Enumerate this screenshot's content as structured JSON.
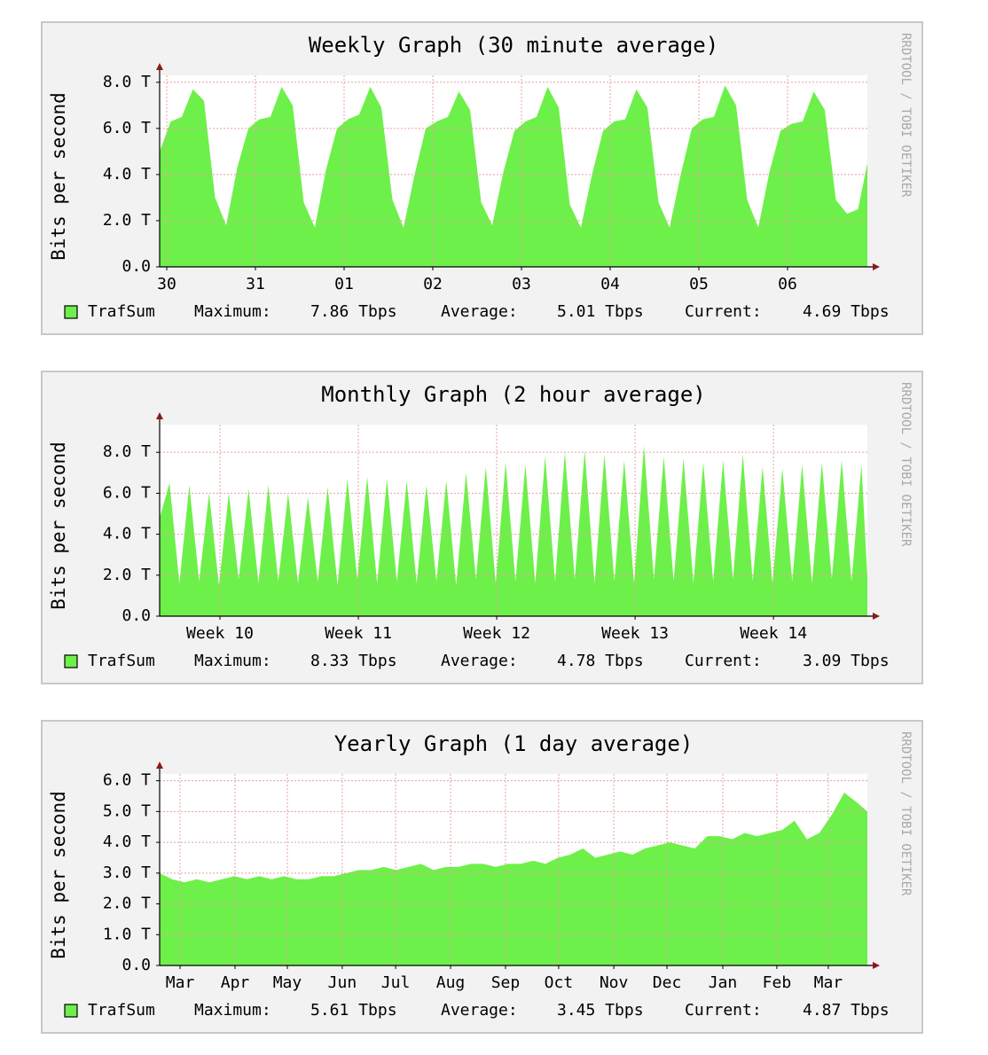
{
  "chart_data": [
    {
      "type": "area",
      "title": "Weekly Graph (30 minute average)",
      "ylabel": "Bits per second",
      "watermark": "RRDTOOL / TOBI OETIKER",
      "x": [
        0,
        0.125,
        0.25,
        0.375,
        0.5,
        0.625,
        0.75,
        0.875,
        1,
        1.125,
        1.25,
        1.375,
        1.5,
        1.625,
        1.75,
        1.875,
        2,
        2.125,
        2.25,
        2.375,
        2.5,
        2.625,
        2.75,
        2.875,
        3,
        3.125,
        3.25,
        3.375,
        3.5,
        3.625,
        3.75,
        3.875,
        4,
        4.125,
        4.25,
        4.375,
        4.5,
        4.625,
        4.75,
        4.875,
        5,
        5.125,
        5.25,
        5.375,
        5.5,
        5.625,
        5.75,
        5.875,
        6,
        6.125,
        6.25,
        6.375,
        6.5,
        6.625,
        6.75,
        6.875,
        7,
        7.125,
        7.25,
        7.375,
        7.5,
        7.625,
        7.75,
        7.875,
        7.98
      ],
      "series": [
        {
          "name": "TrafSum",
          "color": "#6ef04a",
          "values": [
            5.0,
            6.3,
            6.5,
            7.7,
            7.2,
            3.0,
            1.8,
            4.3,
            6.0,
            6.4,
            6.5,
            7.8,
            7.0,
            2.8,
            1.7,
            4.2,
            6.0,
            6.4,
            6.6,
            7.8,
            6.9,
            2.9,
            1.7,
            4.0,
            6.0,
            6.3,
            6.5,
            7.6,
            6.8,
            2.8,
            1.8,
            4.1,
            5.9,
            6.3,
            6.5,
            7.8,
            6.9,
            2.7,
            1.7,
            4.0,
            5.9,
            6.3,
            6.4,
            7.7,
            6.9,
            2.8,
            1.7,
            4.0,
            6.0,
            6.4,
            6.5,
            7.86,
            7.0,
            2.9,
            1.7,
            4.1,
            5.9,
            6.2,
            6.3,
            7.6,
            6.8,
            2.9,
            2.3,
            2.5,
            4.5
          ]
        }
      ],
      "xlim": [
        0,
        7.98
      ],
      "ylim": [
        0,
        8.3
      ],
      "xticks": [
        {
          "value": 0.08,
          "label": "30"
        },
        {
          "value": 1.08,
          "label": "31"
        },
        {
          "value": 2.08,
          "label": "01"
        },
        {
          "value": 3.08,
          "label": "02"
        },
        {
          "value": 4.08,
          "label": "03"
        },
        {
          "value": 5.08,
          "label": "04"
        },
        {
          "value": 6.08,
          "label": "05"
        },
        {
          "value": 7.08,
          "label": "06"
        }
      ],
      "yticks": [
        {
          "value": 0,
          "label": "0.0"
        },
        {
          "value": 2,
          "label": "2.0 T"
        },
        {
          "value": 4,
          "label": "4.0 T"
        },
        {
          "value": 6,
          "label": "6.0 T"
        },
        {
          "value": 8,
          "label": "8.0 T"
        }
      ],
      "grid": true,
      "legend_stats": [
        {
          "label": "Maximum:",
          "text": "7.86 Tbps"
        },
        {
          "label": "Average:",
          "text": "5.01 Tbps"
        },
        {
          "label": "Current:",
          "text": "4.69 Tbps"
        }
      ]
    },
    {
      "type": "area",
      "title": "Monthly Graph (2 hour average)",
      "ylabel": "Bits per second",
      "watermark": "RRDTOOL / TOBI OETIKER",
      "x": [
        0,
        0.5,
        1,
        1.5,
        2,
        2.5,
        3,
        3.5,
        4,
        4.5,
        5,
        5.5,
        6,
        6.5,
        7,
        7.5,
        8,
        8.5,
        9,
        9.5,
        10,
        10.5,
        11,
        11.5,
        12,
        12.5,
        13,
        13.5,
        14,
        14.5,
        15,
        15.5,
        16,
        16.5,
        17,
        17.5,
        18,
        18.5,
        19,
        19.5,
        20,
        20.5,
        21,
        21.5,
        22,
        22.5,
        23,
        23.5,
        24,
        24.5,
        25,
        25.5,
        26,
        26.5,
        27,
        27.5,
        28,
        28.5,
        29,
        29.5,
        30,
        30.5,
        31,
        31.5,
        32,
        32.5,
        33,
        33.5,
        34,
        34.5,
        35,
        35.5,
        35.8
      ],
      "series": [
        {
          "name": "TrafSum",
          "color": "#6ef04a",
          "values": [
            4.8,
            6.5,
            1.6,
            6.4,
            1.7,
            6.0,
            1.5,
            6.0,
            1.8,
            6.2,
            1.6,
            6.4,
            1.7,
            6.0,
            1.6,
            5.8,
            1.7,
            6.3,
            1.5,
            6.7,
            1.8,
            6.8,
            1.6,
            6.7,
            1.7,
            6.6,
            1.6,
            6.4,
            1.7,
            6.6,
            1.5,
            7.0,
            1.8,
            7.3,
            1.6,
            7.5,
            1.7,
            7.4,
            1.6,
            7.8,
            1.7,
            8.0,
            1.8,
            8.1,
            1.6,
            7.9,
            1.7,
            7.6,
            1.6,
            8.33,
            1.8,
            7.8,
            1.7,
            7.7,
            1.6,
            7.5,
            1.7,
            7.6,
            1.8,
            7.9,
            1.7,
            7.3,
            1.6,
            7.2,
            1.7,
            7.4,
            1.6,
            7.5,
            1.8,
            7.6,
            1.7,
            7.4,
            1.9
          ]
        }
      ],
      "xlim": [
        0,
        35.8
      ],
      "ylim": [
        0,
        9.35
      ],
      "xticks": [
        {
          "value": 3.05,
          "label": "Week 10"
        },
        {
          "value": 10.05,
          "label": "Week 11"
        },
        {
          "value": 17.05,
          "label": "Week 12"
        },
        {
          "value": 24.05,
          "label": "Week 13"
        },
        {
          "value": 31.05,
          "label": "Week 14"
        }
      ],
      "yticks": [
        {
          "value": 0,
          "label": "0.0"
        },
        {
          "value": 2,
          "label": "2.0 T"
        },
        {
          "value": 4,
          "label": "4.0 T"
        },
        {
          "value": 6,
          "label": "6.0 T"
        },
        {
          "value": 8,
          "label": "8.0 T"
        }
      ],
      "grid": true,
      "legend_stats": [
        {
          "label": "Maximum:",
          "text": "8.33 Tbps"
        },
        {
          "label": "Average:",
          "text": "4.78 Tbps"
        },
        {
          "label": "Current:",
          "text": "3.09 Tbps"
        }
      ]
    },
    {
      "type": "area",
      "title": "Yearly Graph (1 day average)",
      "ylabel": "Bits per second",
      "watermark": "RRDTOOL / TOBI OETIKER",
      "x": [
        0,
        7,
        14,
        21,
        28,
        35,
        42,
        49,
        56,
        63,
        70,
        77,
        84,
        91,
        98,
        105,
        112,
        119,
        126,
        133,
        140,
        147,
        154,
        161,
        168,
        175,
        182,
        189,
        196,
        203,
        210,
        217,
        224,
        231,
        238,
        245,
        252,
        259,
        266,
        273,
        280,
        287,
        294,
        301,
        308,
        315,
        322,
        329,
        336,
        343,
        350,
        357,
        364,
        371,
        378,
        385,
        392,
        398
      ],
      "series": [
        {
          "name": "TrafSum",
          "color": "#6ef04a",
          "values": [
            3.0,
            2.8,
            2.7,
            2.8,
            2.7,
            2.8,
            2.9,
            2.8,
            2.9,
            2.8,
            2.9,
            2.8,
            2.8,
            2.9,
            2.9,
            3.0,
            3.1,
            3.1,
            3.2,
            3.1,
            3.2,
            3.3,
            3.1,
            3.2,
            3.2,
            3.3,
            3.3,
            3.2,
            3.3,
            3.3,
            3.4,
            3.3,
            3.5,
            3.6,
            3.8,
            3.5,
            3.6,
            3.7,
            3.6,
            3.8,
            3.9,
            4.0,
            3.9,
            3.8,
            4.2,
            4.2,
            4.1,
            4.3,
            4.2,
            4.3,
            4.4,
            4.7,
            4.1,
            4.3,
            4.9,
            5.61,
            5.3,
            5.0
          ]
        }
      ],
      "xlim": [
        0,
        398
      ],
      "ylim": [
        0,
        6.22
      ],
      "xticks": [
        {
          "value": 11.5,
          "label": "Mar"
        },
        {
          "value": 42.4,
          "label": "Apr"
        },
        {
          "value": 71.8,
          "label": "May"
        },
        {
          "value": 102.7,
          "label": "Jun"
        },
        {
          "value": 132.7,
          "label": "Jul"
        },
        {
          "value": 163.6,
          "label": "Aug"
        },
        {
          "value": 194.5,
          "label": "Sep"
        },
        {
          "value": 224.4,
          "label": "Oct"
        },
        {
          "value": 255.4,
          "label": "Nov"
        },
        {
          "value": 285.3,
          "label": "Dec"
        },
        {
          "value": 316.7,
          "label": "Jan"
        },
        {
          "value": 347.1,
          "label": "Feb"
        },
        {
          "value": 376,
          "label": "Mar"
        }
      ],
      "yticks": [
        {
          "value": 0,
          "label": "0.0"
        },
        {
          "value": 1,
          "label": "1.0 T"
        },
        {
          "value": 2,
          "label": "2.0 T"
        },
        {
          "value": 3,
          "label": "3.0 T"
        },
        {
          "value": 4,
          "label": "4.0 T"
        },
        {
          "value": 5,
          "label": "5.0 T"
        },
        {
          "value": 6,
          "label": "6.0 T"
        }
      ],
      "grid": true,
      "legend_stats": [
        {
          "label": "Maximum:",
          "text": "5.61 Tbps"
        },
        {
          "label": "Average:",
          "text": "3.45 Tbps"
        },
        {
          "label": "Current:",
          "text": "4.87 Tbps"
        }
      ]
    }
  ]
}
